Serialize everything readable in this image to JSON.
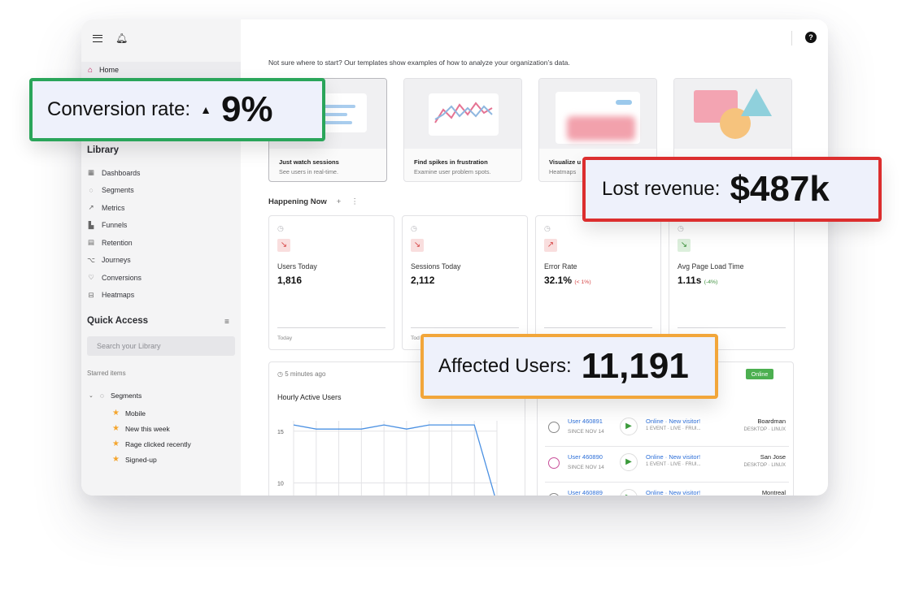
{
  "sidebar": {
    "home": "Home",
    "library_title": "Library",
    "library_items": [
      "Dashboards",
      "Segments",
      "Metrics",
      "Funnels",
      "Retention",
      "Journeys",
      "Conversions",
      "Heatmaps"
    ],
    "library_icons": [
      "grid-icon",
      "circle-icon",
      "trend-icon",
      "funnel-icon",
      "retention-icon",
      "journey-icon",
      "conversion-icon",
      "heatmap-icon"
    ],
    "quick_access_title": "Quick Access",
    "search_placeholder": "Search your Library",
    "starred_label": "Starred items",
    "starred_folder": "Segments",
    "starred_items": [
      "Mobile",
      "New this week",
      "Rage clicked recently",
      "Signed-up"
    ]
  },
  "main": {
    "intro": "Not sure where to start? Our templates show examples of how to analyze your organization’s data.",
    "templates": [
      {
        "title": "Just watch sessions",
        "subtitle": "See users in real-time."
      },
      {
        "title": "Find spikes in frustration",
        "subtitle": "Examine user problem spots."
      },
      {
        "title": "Visualize u",
        "subtitle": "Heatmaps"
      },
      {
        "title": "",
        "subtitle": ""
      }
    ],
    "happening_now": "Happening Now",
    "happening_add": "+",
    "happening_more": "⋮",
    "stats": [
      {
        "label": "Users Today",
        "value": "1,816",
        "delta": "",
        "footer": "Today",
        "trend": "down"
      },
      {
        "label": "Sessions Today",
        "value": "2,112",
        "delta": "",
        "footer": "Tod",
        "trend": "down"
      },
      {
        "label": "Error Rate",
        "value": "32.1%",
        "delta": "(< 1%)",
        "footer": "",
        "trend": "up"
      },
      {
        "label": "Avg Page Load Time",
        "value": "1.11s",
        "delta": "(-4%)",
        "footer": "",
        "trend": "good"
      }
    ],
    "chart_panel": {
      "updated": "5 minutes ago",
      "title": "Hourly Active Users"
    },
    "live_panel": {
      "online_badge": "Online",
      "users": [
        {
          "name": "User 460891",
          "since": "SINCE NOV 14",
          "status": "Online · New visitor!",
          "events": "1 EVENT · LIVE · FRUI...",
          "city": "Boardman",
          "device": "DESKTOP · LINUX"
        },
        {
          "name": "User 460890",
          "since": "SINCE NOV 14",
          "status": "Online · New visitor!",
          "events": "1 EVENT · LIVE · FRUI...",
          "city": "San Jose",
          "device": "DESKTOP · LINUX"
        },
        {
          "name": "User 460889",
          "since": "",
          "status": "Online · New visitor!",
          "events": "",
          "city": "Montreal",
          "device": ""
        }
      ]
    }
  },
  "chart_data": {
    "type": "line",
    "title": "Hourly Active Users",
    "xlabel": "",
    "ylabel": "",
    "y_ticks": [
      "15",
      "10"
    ],
    "ylim": [
      8,
      16
    ],
    "x": [
      0,
      1,
      2,
      3,
      4,
      5,
      6,
      7,
      8,
      9
    ],
    "values": [
      15.6,
      15.2,
      15.2,
      15.2,
      15.6,
      15.2,
      15.6,
      15.6,
      15.6,
      8.0
    ],
    "grid": true,
    "color": "#4a90e2"
  },
  "callouts": {
    "conversion": {
      "label": "Conversion rate:",
      "value": "9%",
      "arrow": "▲",
      "color": "#2aa55a"
    },
    "revenue": {
      "label": "Lost revenue:",
      "value": "$487k",
      "color": "#dc2e2e"
    },
    "affected": {
      "label": "Affected Users:",
      "value": "11,191",
      "color": "#f2a63a"
    }
  }
}
